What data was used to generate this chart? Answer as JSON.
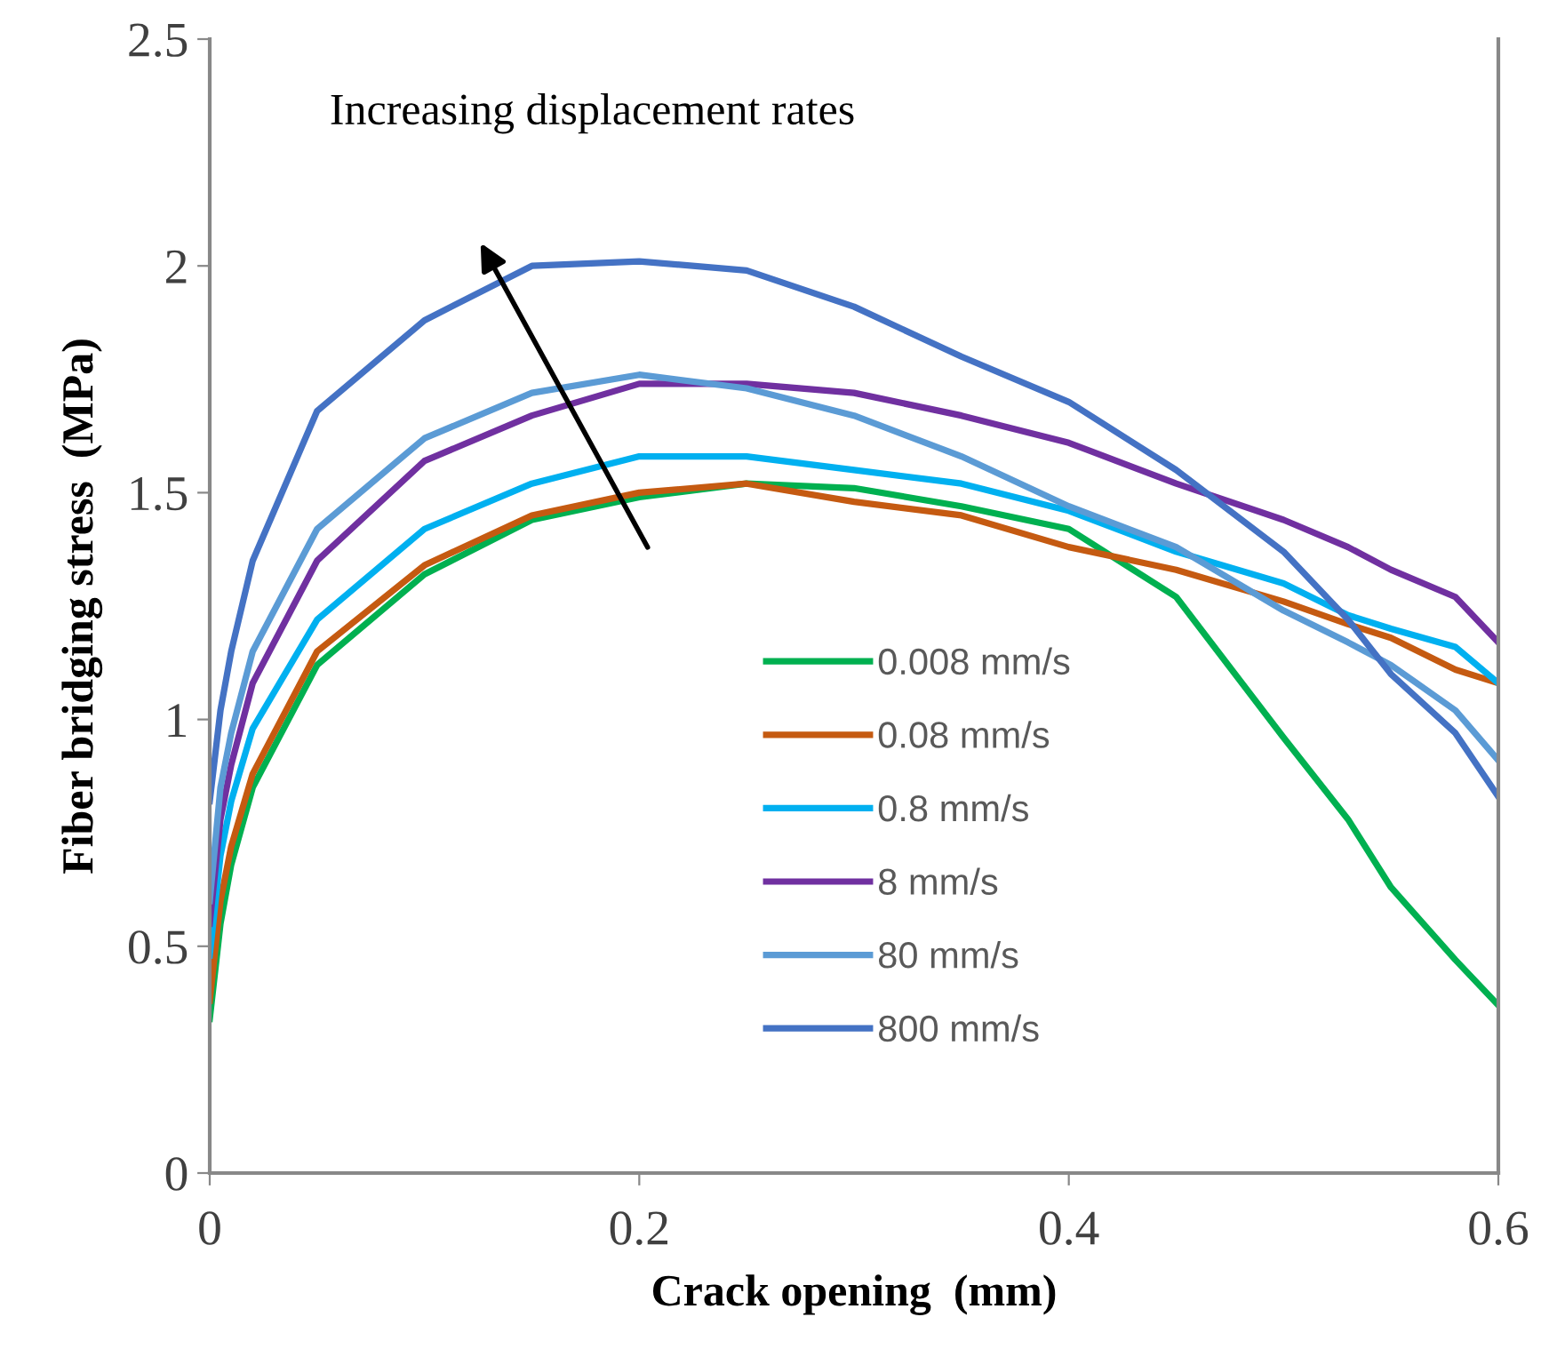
{
  "chart_data": {
    "type": "line",
    "xlabel": "Crack opening  (mm)",
    "ylabel": "Fiber bridging stress  (MPa)",
    "annotations": [
      "Increasing displacement rates"
    ],
    "x": [
      0,
      0.005,
      0.01,
      0.02,
      0.05,
      0.1,
      0.15,
      0.2,
      0.25,
      0.3,
      0.35,
      0.4,
      0.45,
      0.5,
      0.53,
      0.55,
      0.58,
      0.6
    ],
    "series": [
      {
        "name": "0.008 mm/s",
        "color": "#00b050",
        "values": [
          0.34,
          0.55,
          0.68,
          0.85,
          1.12,
          1.32,
          1.44,
          1.49,
          1.52,
          1.51,
          1.47,
          1.42,
          1.27,
          0.96,
          0.78,
          0.63,
          0.47,
          0.37
        ]
      },
      {
        "name": "0.08 mm/s",
        "color": "#c55a11",
        "values": [
          0.38,
          0.6,
          0.72,
          0.88,
          1.15,
          1.34,
          1.45,
          1.5,
          1.52,
          1.48,
          1.45,
          1.38,
          1.33,
          1.26,
          1.21,
          1.18,
          1.11,
          1.08
        ]
      },
      {
        "name": "0.8 mm/s",
        "color": "#00b0f0",
        "values": [
          0.48,
          0.7,
          0.82,
          0.98,
          1.22,
          1.42,
          1.52,
          1.58,
          1.58,
          1.55,
          1.52,
          1.46,
          1.37,
          1.3,
          1.23,
          1.2,
          1.16,
          1.08
        ]
      },
      {
        "name": "8 mm/s",
        "color": "#7030a0",
        "values": [
          0.55,
          0.78,
          0.9,
          1.08,
          1.35,
          1.57,
          1.67,
          1.74,
          1.74,
          1.72,
          1.67,
          1.61,
          1.52,
          1.44,
          1.38,
          1.33,
          1.27,
          1.17
        ]
      },
      {
        "name": "80 mm/s",
        "color": "#5b9bd5",
        "values": [
          0.6,
          0.85,
          0.97,
          1.15,
          1.42,
          1.62,
          1.72,
          1.76,
          1.73,
          1.67,
          1.58,
          1.47,
          1.38,
          1.24,
          1.17,
          1.12,
          1.02,
          0.91
        ]
      },
      {
        "name": "800 mm/s",
        "color": "#4472c4",
        "values": [
          0.82,
          1.02,
          1.15,
          1.35,
          1.68,
          1.88,
          2.0,
          2.01,
          1.99,
          1.91,
          1.8,
          1.7,
          1.55,
          1.37,
          1.22,
          1.1,
          0.97,
          0.83
        ]
      }
    ],
    "xlim": [
      0,
      0.6
    ],
    "xticks": [
      0,
      0.2,
      0.4,
      0.6
    ],
    "ylim": [
      0,
      2.5
    ],
    "yticks": [
      0,
      0.5,
      1,
      1.5,
      2,
      2.5
    ],
    "grid": false,
    "legend": "bottom",
    "marker": "none",
    "line_style": "solid"
  }
}
